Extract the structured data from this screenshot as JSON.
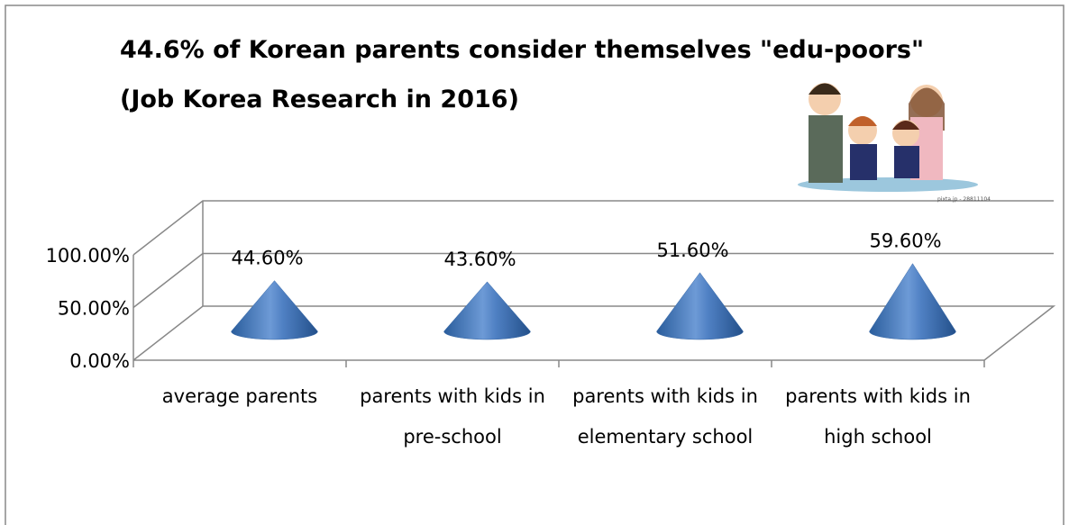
{
  "chart_data": {
    "type": "cone",
    "title": "44.6% of Korean parents consider themselves \"edu-poors\"",
    "subtitle": "(Job Korea Research in 2016)",
    "image_credit": "pixta.jp - 28811104",
    "categories": [
      "average parents",
      "parents with kids in pre-school",
      "parents with kids in elementary school",
      "parents with kids in high school"
    ],
    "values": [
      44.6,
      43.6,
      51.6,
      59.6
    ],
    "value_labels": [
      "44.60%",
      "43.60%",
      "51.60%",
      "59.60%"
    ],
    "color": "#4f80c3",
    "ylim": [
      0,
      100
    ],
    "yticks": [
      {
        "value": 0,
        "label": "0.00%"
      },
      {
        "value": 50,
        "label": "50.00%"
      },
      {
        "value": 100,
        "label": "100.00%"
      }
    ],
    "grid": true
  }
}
